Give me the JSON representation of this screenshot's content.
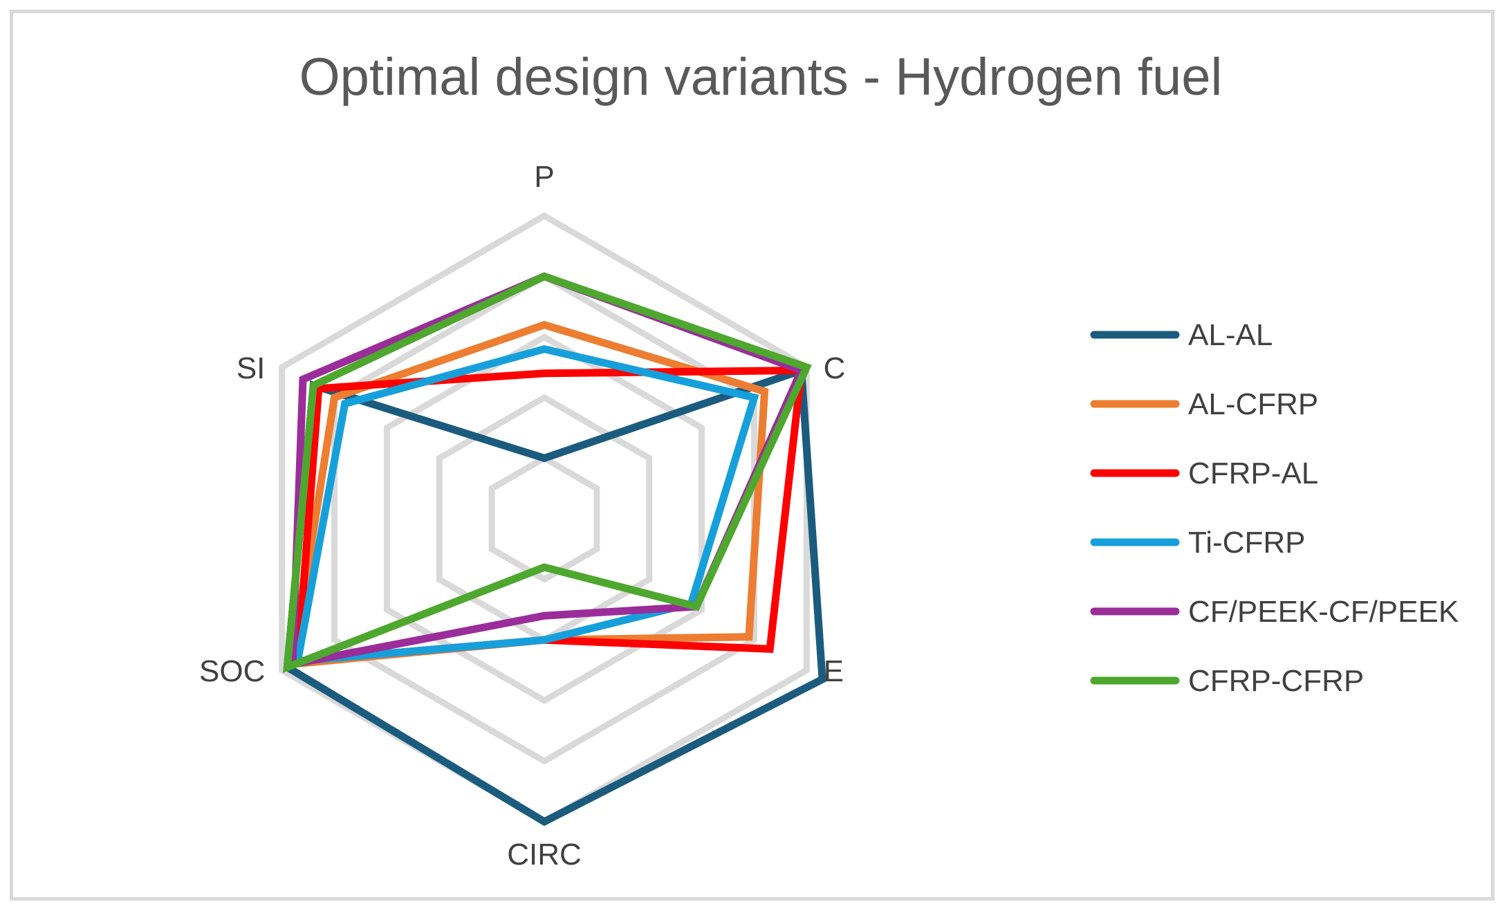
{
  "chart_data": {
    "type": "radar",
    "title": "Optimal design variants - Hydrogen fuel",
    "axes": [
      "P",
      "C",
      "E",
      "CIRC",
      "SOC",
      "SI"
    ],
    "rmax": 5,
    "grid_levels": [
      1,
      2,
      3,
      4,
      5
    ],
    "grid_color": "#d9d9d9",
    "legend_position": "right",
    "series": [
      {
        "name": "AL-AL",
        "color": "#1b5b7e",
        "values": [
          1.0,
          4.9,
          5.3,
          5.0,
          4.9,
          4.4
        ]
      },
      {
        "name": "AL-CFRP",
        "color": "#ed7d31",
        "values": [
          3.2,
          4.2,
          3.9,
          2.0,
          4.8,
          4.0
        ]
      },
      {
        "name": "CFRP-AL",
        "color": "#ff0000",
        "values": [
          2.4,
          4.9,
          4.3,
          2.0,
          4.7,
          4.3
        ]
      },
      {
        "name": "Ti-CFRP",
        "color": "#16a0db",
        "values": [
          2.8,
          4.0,
          2.8,
          2.0,
          4.7,
          3.8
        ]
      },
      {
        "name": "CF/PEEK-CF/PEEK",
        "color": "#9a2d9a",
        "values": [
          4.0,
          4.9,
          2.9,
          1.6,
          4.8,
          4.6
        ]
      },
      {
        "name": "CFRP-CFRP",
        "color": "#4ea72e",
        "values": [
          4.0,
          5.0,
          2.9,
          0.8,
          4.9,
          4.4
        ]
      }
    ]
  }
}
